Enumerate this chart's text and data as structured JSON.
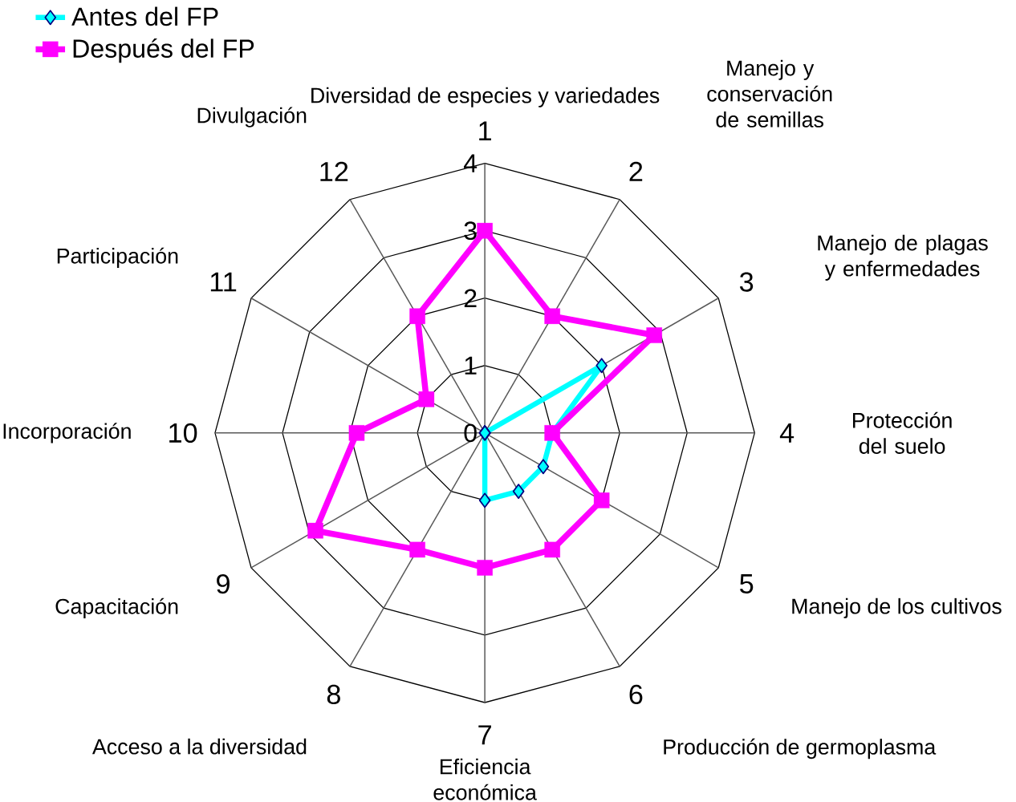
{
  "chart_data": {
    "type": "radar",
    "categories": [
      "Diversidad de especies y variedades",
      "Manejo y conservación de semillas",
      "Manejo de plagas y enfermedades",
      "Protección del suelo",
      "Manejo de los cultivos",
      "Producción de germoplasma",
      "Eficiencia económica",
      "Acceso a la diversidad",
      "Capacitación",
      "Incorporación",
      "Participación",
      "Divulgación"
    ],
    "annotations": [
      "1",
      "2",
      "3",
      "4",
      "5",
      "6",
      "7",
      "8",
      "9",
      "10",
      "11",
      "12"
    ],
    "ylim": [
      0,
      4
    ],
    "yticks": [
      0,
      1,
      2,
      3,
      4
    ],
    "legend": "top left",
    "series": [
      {
        "name": "Antes del FP",
        "color": "#00ffff",
        "marker": "diamond",
        "values": [
          0,
          0,
          2,
          1,
          1,
          1,
          1,
          0,
          0,
          0,
          0,
          0
        ]
      },
      {
        "name": "Después del FP",
        "color": "#ff00ff",
        "marker": "square",
        "values": [
          3,
          2,
          2.9,
          1,
          2,
          2,
          2,
          2,
          2.9,
          1.9,
          1,
          2
        ]
      }
    ]
  }
}
